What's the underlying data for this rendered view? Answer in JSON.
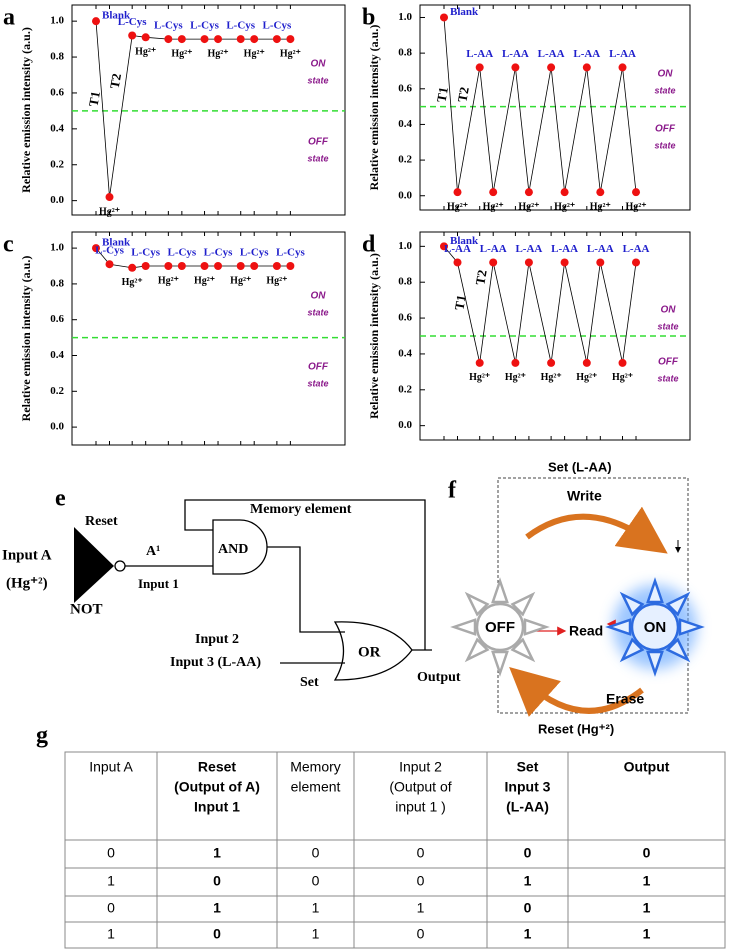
{
  "chart_data": [
    {
      "type": "line",
      "panel": "a",
      "y_label": "Relative emission intensity (a.u.)",
      "values": [
        1.0,
        0.02,
        0.92,
        0.91,
        0.9,
        0.9,
        0.9,
        0.9,
        0.9,
        0.9,
        0.9,
        0.9
      ],
      "point_labels": [
        "Blank",
        "Hg²⁺",
        "L-Cys",
        "Hg²⁺",
        "L-Cys",
        "Hg²⁺",
        "L-Cys",
        "Hg²⁺",
        "L-Cys",
        "Hg²⁺",
        "L-Cys",
        "Hg²⁺"
      ],
      "point_label_colors": [
        "#1f1fcc",
        "#000000",
        "#1f1fcc",
        "#000000",
        "#1f1fcc",
        "#000000",
        "#1f1fcc",
        "#000000",
        "#1f1fcc",
        "#000000",
        "#1f1fcc",
        "#000000"
      ],
      "color": "#ee1111",
      "line_color": "#000000",
      "threshold": 0.5,
      "threshold_color": "#33dd33",
      "t_labels": [
        "T1",
        "T2"
      ],
      "on_state": [
        "ON",
        "state"
      ],
      "off_state": [
        "OFF",
        "state"
      ],
      "state_color": "#8b1a8b",
      "ylim": [
        -0.08,
        1.09
      ],
      "yticks": [
        {
          "value": 0,
          "label": "0.0"
        },
        0.2,
        0.4,
        0.6,
        0.8,
        {
          "value": 1,
          "label": "1.0"
        }
      ]
    },
    {
      "type": "line",
      "panel": "b",
      "y_label": "Relative emission intensity (a.u.)",
      "values": [
        1.0,
        0.02,
        0.72,
        0.02,
        0.72,
        0.02,
        0.72,
        0.02,
        0.72,
        0.02,
        0.72,
        0.02
      ],
      "point_labels": [
        "Blank",
        "Hg²⁺",
        "L-AA",
        "Hg²⁺",
        "L-AA",
        "Hg²⁺",
        "L-AA",
        "Hg²⁺",
        "L-AA",
        "Hg²⁺",
        "L-AA",
        "Hg²⁺"
      ],
      "point_label_colors": [
        "#1f1fcc",
        "#000000",
        "#1f1fcc",
        "#000000",
        "#1f1fcc",
        "#000000",
        "#1f1fcc",
        "#000000",
        "#1f1fcc",
        "#000000",
        "#1f1fcc",
        "#000000"
      ],
      "color": "#ee1111",
      "line_color": "#000000",
      "threshold": 0.5,
      "threshold_color": "#33dd33",
      "t_labels": [
        "T1",
        "T2"
      ],
      "on_state": [
        "ON",
        "state"
      ],
      "off_state": [
        "OFF",
        "state"
      ],
      "state_color": "#8b1a8b",
      "ylim": [
        -0.08,
        1.07
      ],
      "yticks": [
        {
          "value": 0,
          "label": "0.0"
        },
        0.2,
        0.4,
        0.6,
        0.8,
        {
          "value": 1,
          "label": "1.0"
        }
      ]
    },
    {
      "type": "line",
      "panel": "c",
      "y_label": "Relative emission intensity (a.u.)",
      "values": [
        1.0,
        0.91,
        0.89,
        0.9,
        0.9,
        0.9,
        0.9,
        0.9,
        0.9,
        0.9,
        0.9,
        0.9
      ],
      "point_labels": [
        "Blank",
        "L-Cys",
        "Hg²⁺",
        "L-Cys",
        "Hg²⁺",
        "L-Cys",
        "Hg²⁺",
        "L-Cys",
        "Hg²⁺",
        "L-Cys",
        "Hg²⁺",
        "L-Cys"
      ],
      "point_label_colors": [
        "#1f1fcc",
        "#1f1fcc",
        "#000000",
        "#1f1fcc",
        "#000000",
        "#1f1fcc",
        "#000000",
        "#1f1fcc",
        "#000000",
        "#1f1fcc",
        "#000000",
        "#1f1fcc"
      ],
      "color": "#ee1111",
      "line_color": "#000000",
      "threshold": 0.5,
      "threshold_color": "#33dd33",
      "on_state": [
        "ON",
        "state"
      ],
      "off_state": [
        "OFF",
        "state"
      ],
      "state_color": "#8b1a8b",
      "ylim": [
        -0.1,
        1.09
      ],
      "yticks": [
        {
          "value": 0,
          "label": "0.0"
        },
        0.2,
        0.4,
        0.6,
        0.8,
        {
          "value": 1,
          "label": "1.0"
        }
      ]
    },
    {
      "type": "line",
      "panel": "d",
      "y_label": "Relative emission intensity (a.u.)",
      "values": [
        1.0,
        0.91,
        0.35,
        0.91,
        0.35,
        0.91,
        0.35,
        0.91,
        0.35,
        0.91,
        0.35,
        0.91
      ],
      "point_labels": [
        "Blank",
        "L-AA",
        "Hg²⁺",
        "L-AA",
        "Hg²⁺",
        "L-AA",
        "Hg²⁺",
        "L-AA",
        "Hg²⁺",
        "L-AA",
        "Hg²⁺",
        "L-AA"
      ],
      "point_label_colors": [
        "#1f1fcc",
        "#1f1fcc",
        "#000000",
        "#1f1fcc",
        "#000000",
        "#1f1fcc",
        "#000000",
        "#1f1fcc",
        "#000000",
        "#1f1fcc",
        "#000000",
        "#1f1fcc"
      ],
      "color": "#ee1111",
      "line_color": "#000000",
      "threshold": 0.5,
      "threshold_color": "#33dd33",
      "t_labels": [
        "T1",
        "T2"
      ],
      "on_state": [
        "ON",
        "state"
      ],
      "off_state": [
        "OFF",
        "state"
      ],
      "state_color": "#8b1a8b",
      "ylim": [
        -0.08,
        1.08
      ],
      "yticks": [
        {
          "value": 0,
          "label": "0.0"
        },
        0.2,
        0.4,
        0.6,
        0.8,
        {
          "value": 1,
          "label": "1.0"
        }
      ]
    }
  ],
  "diagram_e": {
    "panel": "e",
    "reset": "Reset",
    "input_a": "Input A",
    "input_a_sub": "(Hg⁺²)",
    "not": "NOT",
    "a1": "A¹",
    "input1": "Input 1",
    "and": "AND",
    "memory": "Memory element",
    "input2": "Input 2",
    "input3": "Input 3 (L-AA)",
    "set": "Set",
    "or": "OR",
    "output": "Output"
  },
  "diagram_f": {
    "panel": "f",
    "set": "Set (L-AA)",
    "write": "Write",
    "off": "OFF",
    "read": "Read",
    "on": "ON",
    "erase": "Erase",
    "reset": "Reset (Hg⁺²)"
  },
  "table": {
    "panel": "g",
    "header": [
      [
        "Input A"
      ],
      [
        "Reset",
        "(Output of A)",
        "Input 1"
      ],
      [
        "Memory",
        "element"
      ],
      [
        "Input 2",
        "(Output of",
        "input 1 )"
      ],
      [
        "Set",
        "Input 3",
        "(L-AA)"
      ],
      [
        "Output"
      ]
    ],
    "rows": [
      [
        0,
        1,
        0,
        0,
        0,
        0
      ],
      [
        1,
        0,
        0,
        0,
        1,
        1
      ],
      [
        0,
        1,
        1,
        1,
        0,
        1
      ],
      [
        1,
        0,
        1,
        0,
        1,
        1
      ]
    ]
  }
}
